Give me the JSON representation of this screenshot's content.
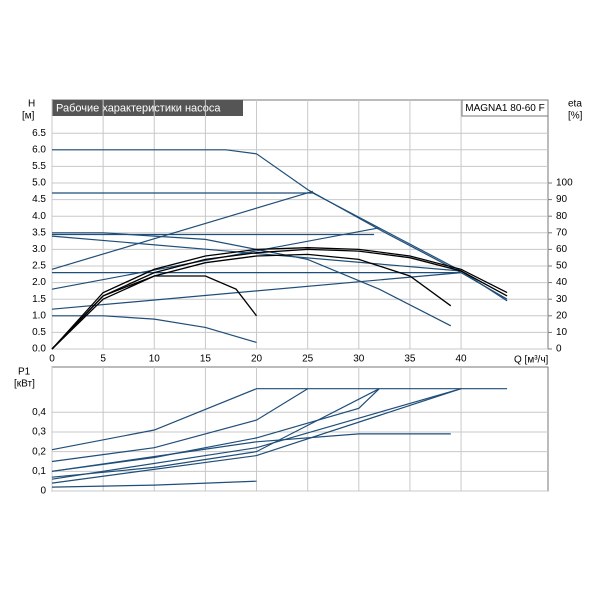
{
  "chart_data": [
    {
      "type": "line",
      "title": "Рабочие характеристики насоса",
      "model": "MAGNA1 80-60 F",
      "y_label": "H",
      "y_unit": "[м]",
      "y2_label": "eta",
      "y2_unit": "[%]",
      "x_label": "Q [м³/ч]",
      "xlim": [
        0,
        48.5
      ],
      "xticks": [
        0,
        5,
        10,
        15,
        20,
        25,
        30,
        35,
        40
      ],
      "ylim": [
        0,
        7.5
      ],
      "yticks": [
        {
          "value": 0,
          "label": "0.0"
        },
        {
          "value": 0.5,
          "label": "0.5"
        },
        {
          "value": 1,
          "label": "1.0"
        },
        {
          "value": 1.5,
          "label": "1.5"
        },
        {
          "value": 2,
          "label": "2.0"
        },
        {
          "value": 2.5,
          "label": "2.5"
        },
        {
          "value": 3,
          "label": "3.0"
        },
        {
          "value": 3.5,
          "label": "3.5"
        },
        {
          "value": 4,
          "label": "4.0"
        },
        {
          "value": 4.5,
          "label": "4.5"
        },
        {
          "value": 5,
          "label": "5.0"
        },
        {
          "value": 5.5,
          "label": "5.5"
        },
        {
          "value": 6,
          "label": "6.0"
        },
        {
          "value": 6.5,
          "label": "6.5"
        }
      ],
      "y2lim": [
        0,
        150
      ],
      "y2ticks": [
        0,
        10,
        20,
        30,
        40,
        50,
        60,
        70,
        80,
        90,
        100
      ],
      "grid": true,
      "series": [
        {
          "color": "#1f4e79",
          "x": [
            0,
            17,
            20,
            25,
            32,
            40,
            44.5
          ],
          "values": [
            6.0,
            6.0,
            5.88,
            4.8,
            3.6,
            2.3,
            1.5
          ]
        },
        {
          "color": "#1f4e79",
          "x": [
            0,
            25.5,
            40,
            44.5
          ],
          "values": [
            4.7,
            4.7,
            2.35,
            1.45
          ]
        },
        {
          "color": "#1f4e79",
          "x": [
            0,
            31.5
          ],
          "values": [
            3.45,
            3.45
          ]
        },
        {
          "color": "#1f4e79",
          "x": [
            0,
            40
          ],
          "values": [
            2.3,
            2.3
          ]
        },
        {
          "color": "#1f4e79",
          "x": [
            0,
            25.5
          ],
          "values": [
            2.4,
            4.75
          ]
        },
        {
          "color": "#1f4e79",
          "x": [
            0,
            32
          ],
          "values": [
            1.8,
            3.65
          ]
        },
        {
          "color": "#1f4e79",
          "x": [
            0,
            40
          ],
          "values": [
            1.2,
            2.3
          ]
        },
        {
          "color": "#1f4e79",
          "x": [
            0,
            40
          ],
          "values": [
            3.4,
            2.35
          ]
        },
        {
          "color": "#1f4e79",
          "x": [
            0,
            5,
            15,
            25,
            32,
            39
          ],
          "values": [
            3.5,
            3.5,
            3.3,
            2.7,
            1.8,
            0.7
          ]
        },
        {
          "color": "#1f4e79",
          "x": [
            0,
            5,
            10,
            15,
            20
          ],
          "values": [
            1.0,
            1.0,
            0.9,
            0.65,
            0.2
          ]
        },
        {
          "color": "#000000",
          "axis": "y2",
          "x": [
            0,
            5,
            10,
            15,
            20,
            25,
            30,
            35,
            40,
            44.5
          ],
          "values": [
            0,
            34,
            48,
            56,
            60,
            61,
            60,
            56,
            48,
            34
          ]
        },
        {
          "color": "#000000",
          "axis": "y2",
          "x": [
            0,
            5,
            10,
            15,
            20,
            25,
            30,
            35,
            40,
            44.5
          ],
          "values": [
            0,
            32,
            46,
            54,
            58,
            60,
            59,
            55,
            47,
            32
          ]
        },
        {
          "color": "#000000",
          "axis": "y2",
          "x": [
            0,
            5,
            10,
            15,
            20,
            25,
            30,
            35,
            39
          ],
          "values": [
            0,
            30,
            44,
            52,
            56,
            57,
            54,
            44,
            26
          ]
        },
        {
          "color": "#000000",
          "axis": "y2",
          "x": [
            0,
            5,
            10,
            15,
            18,
            20
          ],
          "values": [
            0,
            32,
            44,
            44,
            36,
            20
          ]
        }
      ]
    },
    {
      "type": "line",
      "y_label": "P1",
      "y_unit": "[кВт]",
      "ylim": [
        0,
        0.63
      ],
      "yticks": [
        0,
        {
          "value": 0.1,
          "label": "0,1"
        },
        {
          "value": 0.2,
          "label": "0,2"
        },
        {
          "value": 0.3,
          "label": "0,3"
        },
        {
          "value": 0.4,
          "label": "0,4"
        }
      ],
      "grid": true,
      "series": [
        {
          "color": "#1f4e79",
          "x": [
            0,
            10,
            20,
            44.5
          ],
          "values": [
            0.21,
            0.31,
            0.52,
            0.52
          ]
        },
        {
          "color": "#1f4e79",
          "x": [
            0,
            10,
            20,
            25
          ],
          "values": [
            0.15,
            0.22,
            0.36,
            0.52
          ]
        },
        {
          "color": "#1f4e79",
          "x": [
            0,
            10,
            20,
            30,
            32
          ],
          "values": [
            0.1,
            0.17,
            0.27,
            0.42,
            0.52
          ]
        },
        {
          "color": "#1f4e79",
          "x": [
            0,
            10,
            20,
            32
          ],
          "values": [
            0.07,
            0.12,
            0.2,
            0.52
          ]
        },
        {
          "color": "#1f4e79",
          "x": [
            0,
            20,
            30,
            40
          ],
          "values": [
            0.06,
            0.22,
            0.37,
            0.52
          ]
        },
        {
          "color": "#1f4e79",
          "x": [
            0,
            20,
            40
          ],
          "values": [
            0.04,
            0.18,
            0.52
          ]
        },
        {
          "color": "#1f4e79",
          "x": [
            0,
            20,
            30,
            39
          ],
          "values": [
            0.1,
            0.25,
            0.29,
            0.29
          ]
        },
        {
          "color": "#1f4e79",
          "x": [
            0,
            10,
            20
          ],
          "values": [
            0.02,
            0.03,
            0.05
          ]
        }
      ]
    }
  ]
}
